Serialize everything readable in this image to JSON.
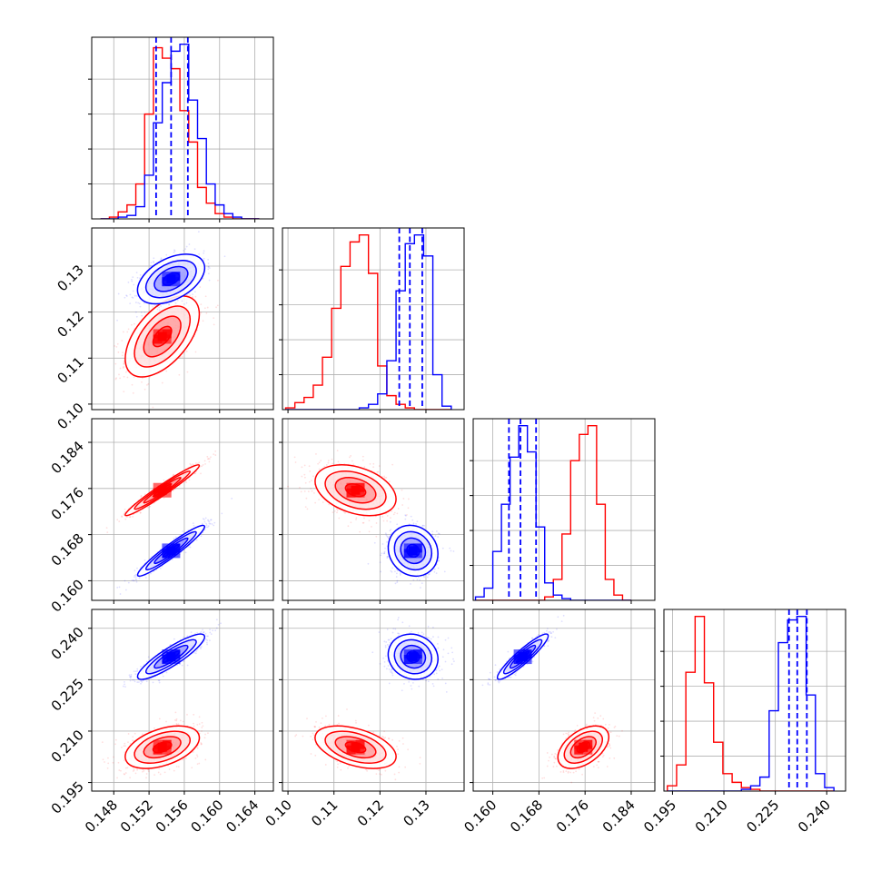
{
  "chart_data": {
    "type": "corner",
    "grid": true,
    "colors": {
      "red": "#ff0000",
      "blue": "#0000ff"
    },
    "parameters": [
      {
        "ticks": [
          "0.148",
          "0.152",
          "0.156",
          "0.160",
          "0.164"
        ],
        "range": [
          0.1455,
          0.1661
        ]
      },
      {
        "ticks": [
          "0.10",
          "0.11",
          "0.12",
          "0.13"
        ],
        "range": [
          0.0988,
          0.1383
        ]
      },
      {
        "ticks": [
          "0.160",
          "0.168",
          "0.176",
          "0.184"
        ],
        "range": [
          0.1566,
          0.1881
        ]
      },
      {
        "ticks": [
          "0.195",
          "0.210",
          "0.225",
          "0.240"
        ],
        "range": [
          0.1925,
          0.2455
        ]
      }
    ],
    "series": [
      {
        "color": "red",
        "means": [
          0.1535,
          0.1147,
          0.1757,
          0.2053
        ],
        "sigmas": [
          0.0021,
          0.0044,
          0.0022,
          0.0031
        ]
      },
      {
        "color": "blue",
        "means": [
          0.1545,
          0.1272,
          0.1652,
          0.2317
        ],
        "sigmas": [
          0.0019,
          0.0027,
          0.0022,
          0.0033
        ],
        "quantiles": [
          [
            0.1528,
            0.1545,
            0.1564
          ],
          [
            0.1242,
            0.1265,
            0.1292
          ],
          [
            0.1628,
            0.1648,
            0.1675
          ],
          [
            0.229,
            0.2314,
            0.2342
          ]
        ]
      }
    ],
    "correlations": [
      {
        "pair": [
          0,
          1
        ],
        "red": 0.55,
        "blue": 0.45
      },
      {
        "pair": [
          0,
          2
        ],
        "red": 0.97,
        "blue": 0.95
      },
      {
        "pair": [
          1,
          2
        ],
        "red": -0.35,
        "blue": -0.12
      },
      {
        "pair": [
          0,
          3
        ],
        "red": 0.45,
        "blue": 0.88
      },
      {
        "pair": [
          1,
          3
        ],
        "red": -0.45,
        "blue": -0.1
      },
      {
        "pair": [
          2,
          3
        ],
        "red": 0.48,
        "blue": 0.92
      }
    ],
    "histograms": [
      {
        "param": 0,
        "edges": [
          0.1465,
          0.1475,
          0.1485,
          0.1495,
          0.1505,
          0.1515,
          0.1525,
          0.1535,
          0.1545,
          0.1555,
          0.1565,
          0.1575,
          0.1585,
          0.1595,
          0.1605,
          0.1615,
          0.1625,
          0.1635,
          0.1645
        ],
        "red": [
          0,
          1,
          4,
          8,
          20,
          60,
          98,
          92,
          86,
          62,
          44,
          18,
          9,
          3,
          1,
          0,
          0,
          0
        ],
        "blue": [
          0,
          0,
          1,
          2,
          7,
          25,
          55,
          78,
          96,
          100,
          68,
          46,
          20,
          8,
          3,
          1,
          0,
          0
        ]
      },
      {
        "param": 1,
        "edges": [
          0.0995,
          0.1015,
          0.1035,
          0.1055,
          0.1075,
          0.1095,
          0.1115,
          0.1135,
          0.1155,
          0.1175,
          0.1195,
          0.1215,
          0.1235,
          0.1255,
          0.1275,
          0.1295,
          0.1315,
          0.1335,
          0.1355
        ],
        "red": [
          1,
          4,
          7,
          14,
          30,
          58,
          82,
          96,
          100,
          78,
          25,
          8,
          3,
          1,
          0,
          0,
          0,
          0
        ],
        "blue": [
          0,
          0,
          0,
          0,
          0,
          0,
          0,
          0,
          1,
          3,
          9,
          28,
          68,
          95,
          100,
          88,
          20,
          2
        ]
      },
      {
        "param": 2,
        "edges": [
          0.157,
          0.1585,
          0.16,
          0.1615,
          0.163,
          0.1645,
          0.166,
          0.1675,
          0.169,
          0.1705,
          0.172,
          0.1735,
          0.175,
          0.1765,
          0.178,
          0.1795,
          0.181,
          0.1825,
          0.184
        ],
        "red": [
          0,
          0,
          0,
          0,
          0,
          0,
          0,
          0,
          2,
          12,
          38,
          80,
          95,
          100,
          55,
          12,
          3,
          0
        ],
        "blue": [
          2,
          7,
          28,
          55,
          82,
          100,
          85,
          42,
          10,
          3,
          1,
          0,
          0,
          0,
          0,
          0,
          0,
          0
        ]
      },
      {
        "param": 3,
        "edges": [
          0.1935,
          0.1962,
          0.1989,
          0.2016,
          0.2043,
          0.207,
          0.2097,
          0.2124,
          0.2151,
          0.2178,
          0.2205,
          0.2232,
          0.2259,
          0.2286,
          0.2313,
          0.234,
          0.2367,
          0.2394,
          0.2421
        ],
        "red": [
          3,
          15,
          68,
          100,
          62,
          28,
          10,
          5,
          2,
          1,
          0,
          0,
          0,
          0,
          0,
          0,
          0,
          0
        ],
        "blue": [
          0,
          0,
          0,
          0,
          0,
          0,
          0,
          0,
          1,
          3,
          8,
          46,
          85,
          98,
          100,
          55,
          10,
          2
        ]
      }
    ]
  }
}
